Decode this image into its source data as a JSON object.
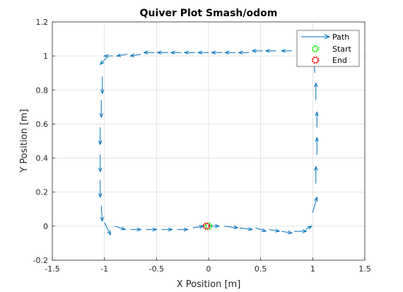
{
  "chart_data": {
    "type": "quiver",
    "title": "Quiver Plot Smash/odom",
    "xlabel": "X Position [m]",
    "ylabel": "Y Position [m]",
    "xlim": [
      -1.5,
      1.5
    ],
    "ylim": [
      -0.2,
      1.2
    ],
    "xticks": [
      -1.5,
      -1,
      -0.5,
      0,
      0.5,
      1,
      1.5
    ],
    "xtick_labels": [
      "-1.5",
      "-1",
      "-0.5",
      "0",
      "0.5",
      "1",
      "1.5"
    ],
    "yticks": [
      -0.2,
      0,
      0.2,
      0.4,
      0.6,
      0.8,
      1,
      1.2
    ],
    "ytick_labels": [
      "-0.2",
      "0",
      "0.2",
      "0.4",
      "0.6",
      "0.8",
      "1",
      "1.2"
    ],
    "grid": true,
    "legend": {
      "placement": "top-right",
      "entries": [
        {
          "label": "Path",
          "marker": "arrow",
          "color": "#0072BD"
        },
        {
          "label": "Start",
          "marker": "star",
          "color": "#00FF00"
        },
        {
          "label": "End",
          "marker": "star",
          "color": "#FF0000"
        }
      ]
    },
    "path_color": "#0072BD",
    "start": {
      "x": 0.0,
      "y": 0.0
    },
    "end": {
      "x": -0.02,
      "y": 0.0
    },
    "arrows": [
      {
        "x": 0.0,
        "y": 0.0,
        "u": 0.1,
        "v": 0.0
      },
      {
        "x": 0.15,
        "y": 0.0,
        "u": 0.13,
        "v": -0.01
      },
      {
        "x": 0.3,
        "y": -0.01,
        "u": 0.12,
        "v": -0.01
      },
      {
        "x": 0.45,
        "y": -0.01,
        "u": 0.1,
        "v": -0.02
      },
      {
        "x": 0.58,
        "y": -0.02,
        "u": 0.1,
        "v": -0.01
      },
      {
        "x": 0.7,
        "y": -0.03,
        "u": 0.1,
        "v": -0.01
      },
      {
        "x": 0.82,
        "y": -0.03,
        "u": 0.12,
        "v": 0.0
      },
      {
        "x": 0.93,
        "y": -0.02,
        "u": 0.06,
        "v": 0.02
      },
      {
        "x": 1.0,
        "y": 0.08,
        "u": 0.04,
        "v": 0.09
      },
      {
        "x": 1.03,
        "y": 0.25,
        "u": 0.0,
        "v": 0.1
      },
      {
        "x": 1.04,
        "y": 0.42,
        "u": 0.0,
        "v": 0.1
      },
      {
        "x": 1.04,
        "y": 0.58,
        "u": 0.0,
        "v": 0.09
      },
      {
        "x": 1.03,
        "y": 0.74,
        "u": 0.0,
        "v": 0.1
      },
      {
        "x": 1.02,
        "y": 0.9,
        "u": -0.01,
        "v": 0.08
      },
      {
        "x": 0.98,
        "y": 1.03,
        "u": -0.08,
        "v": 0.0
      },
      {
        "x": 0.8,
        "y": 1.03,
        "u": -0.1,
        "v": 0.0
      },
      {
        "x": 0.65,
        "y": 1.03,
        "u": -0.1,
        "v": 0.0
      },
      {
        "x": 0.52,
        "y": 1.03,
        "u": -0.1,
        "v": 0.0
      },
      {
        "x": 0.39,
        "y": 1.02,
        "u": -0.1,
        "v": 0.0
      },
      {
        "x": 0.26,
        "y": 1.02,
        "u": -0.1,
        "v": 0.0
      },
      {
        "x": 0.13,
        "y": 1.02,
        "u": -0.1,
        "v": 0.0
      },
      {
        "x": 0.0,
        "y": 1.02,
        "u": -0.1,
        "v": 0.0
      },
      {
        "x": -0.13,
        "y": 1.02,
        "u": -0.1,
        "v": 0.0
      },
      {
        "x": -0.26,
        "y": 1.02,
        "u": -0.1,
        "v": 0.0
      },
      {
        "x": -0.39,
        "y": 1.02,
        "u": -0.1,
        "v": 0.0
      },
      {
        "x": -0.52,
        "y": 1.02,
        "u": -0.1,
        "v": 0.0
      },
      {
        "x": -0.65,
        "y": 1.01,
        "u": -0.1,
        "v": -0.01
      },
      {
        "x": -0.78,
        "y": 1.01,
        "u": -0.1,
        "v": -0.01
      },
      {
        "x": -0.92,
        "y": 1.0,
        "u": -0.08,
        "v": 0.0
      },
      {
        "x": -0.98,
        "y": 0.99,
        "u": -0.06,
        "v": -0.04
      },
      {
        "x": -1.02,
        "y": 0.88,
        "u": 0.0,
        "v": -0.1
      },
      {
        "x": -1.03,
        "y": 0.74,
        "u": 0.0,
        "v": -0.1
      },
      {
        "x": -1.04,
        "y": 0.58,
        "u": 0.0,
        "v": -0.1
      },
      {
        "x": -1.04,
        "y": 0.42,
        "u": 0.0,
        "v": -0.1
      },
      {
        "x": -1.04,
        "y": 0.27,
        "u": 0.0,
        "v": -0.1
      },
      {
        "x": -1.03,
        "y": 0.12,
        "u": 0.01,
        "v": -0.09
      },
      {
        "x": -1.0,
        "y": 0.02,
        "u": 0.06,
        "v": -0.07
      },
      {
        "x": -0.9,
        "y": 0.0,
        "u": 0.1,
        "v": -0.02
      },
      {
        "x": -0.75,
        "y": -0.02,
        "u": 0.1,
        "v": 0.0
      },
      {
        "x": -0.6,
        "y": -0.02,
        "u": 0.1,
        "v": 0.0
      },
      {
        "x": -0.45,
        "y": -0.02,
        "u": 0.1,
        "v": 0.0
      },
      {
        "x": -0.3,
        "y": -0.02,
        "u": 0.1,
        "v": 0.0
      },
      {
        "x": -0.15,
        "y": -0.01,
        "u": 0.1,
        "v": 0.01
      }
    ]
  }
}
